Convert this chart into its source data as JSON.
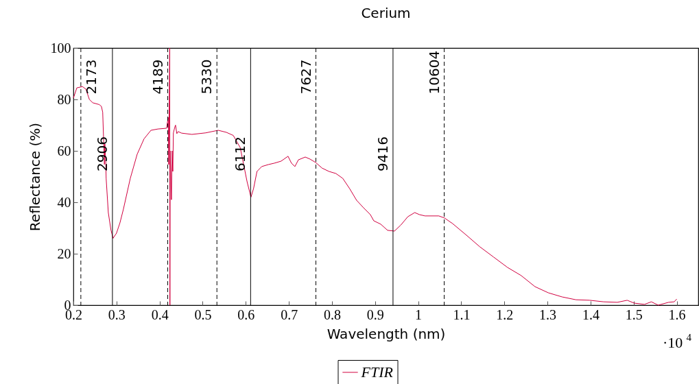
{
  "chart_data": {
    "type": "line",
    "title": "Cerium",
    "xlabel": "Wavelength (nm)",
    "ylabel": "Reflectance (%)",
    "xlim": [
      0.2,
      1.65
    ],
    "ylim": [
      0,
      100
    ],
    "xticks": [
      0.2,
      0.3,
      0.4,
      0.5,
      0.6,
      0.7,
      0.8,
      0.9,
      1,
      1.1,
      1.2,
      1.3,
      1.4,
      1.5,
      1.6
    ],
    "yticks": [
      0,
      20,
      40,
      60,
      80,
      100
    ],
    "legend": "bottom",
    "annotations": [
      "·10$^{4}$",
      {
        "text": "2173",
        "x": 0.2173,
        "y": 70
      },
      {
        "text": "2906",
        "x": 0.2906,
        "y": 40
      },
      {
        "text": "4189",
        "x": 0.4189,
        "y": 70
      },
      {
        "text": "5330",
        "x": 0.533,
        "y": 70
      },
      {
        "text": "6112",
        "x": 0.6112,
        "y": 40
      },
      {
        "text": "7627",
        "x": 0.7627,
        "y": 70
      },
      {
        "text": "9416",
        "x": 0.9416,
        "y": 40
      },
      {
        "text": "10604",
        "x": 1.0604,
        "y": 70
      }
    ],
    "series": [
      {
        "name": "FTIR",
        "color": "#d1003f",
        "x": [
          0.2,
          0.208,
          0.221,
          0.229,
          0.237,
          0.245,
          0.26,
          0.265,
          0.268,
          0.272,
          0.273,
          0.275,
          0.276,
          0.281,
          0.287,
          0.292,
          0.3,
          0.308,
          0.316,
          0.332,
          0.348,
          0.364,
          0.38,
          0.396,
          0.416,
          0.42,
          0.421,
          0.4235,
          0.424,
          0.4245,
          0.4275,
          0.429,
          0.4307,
          0.432,
          0.4354,
          0.437,
          0.44,
          0.443,
          0.451,
          0.475,
          0.507,
          0.536,
          0.555,
          0.571,
          0.587,
          0.595,
          0.603,
          0.612,
          0.618,
          0.626,
          0.637,
          0.653,
          0.666,
          0.682,
          0.698,
          0.706,
          0.714,
          0.722,
          0.738,
          0.749,
          0.762,
          0.777,
          0.793,
          0.809,
          0.825,
          0.841,
          0.857,
          0.873,
          0.889,
          0.897,
          0.913,
          0.929,
          0.945,
          0.96,
          0.976,
          0.992,
          1.003,
          1.016,
          1.048,
          1.061,
          1.08,
          1.112,
          1.143,
          1.175,
          1.207,
          1.239,
          1.271,
          1.302,
          1.334,
          1.366,
          1.398,
          1.43,
          1.462,
          1.485,
          1.501,
          1.525,
          1.541,
          1.557,
          1.581,
          1.594,
          1.6
        ],
        "values": [
          80.5,
          84.5,
          85,
          84,
          80,
          78.7,
          78,
          77.3,
          75,
          54.7,
          62.7,
          56,
          49.3,
          36,
          29.3,
          26,
          28,
          32,
          37.3,
          49.3,
          58.7,
          64.7,
          68,
          68.5,
          68.8,
          73,
          54.7,
          100,
          0,
          60,
          41,
          60,
          52,
          67,
          69.3,
          70,
          66.7,
          67.5,
          66.9,
          66.4,
          67,
          68,
          67.2,
          66,
          61.3,
          54.7,
          48,
          42,
          45.3,
          52,
          53.9,
          54.7,
          55.2,
          56,
          57.9,
          55.2,
          53.9,
          56.5,
          57.6,
          56.8,
          55.5,
          53.3,
          52,
          51.2,
          49.3,
          45.3,
          40.8,
          37.9,
          35.2,
          32.8,
          31.5,
          29.1,
          28.8,
          31.2,
          34.4,
          36,
          35.2,
          34.7,
          34.7,
          33.9,
          31.7,
          27.2,
          22.7,
          18.7,
          14.7,
          11.5,
          7.2,
          4.8,
          3.2,
          2.1,
          1.9,
          1.3,
          1.1,
          1.9,
          0.8,
          0.3,
          1.3,
          0,
          1.1,
          1.3,
          2.4
        ]
      }
    ],
    "ref_lines": [
      {
        "axis": "x",
        "value": 0.2173,
        "line_style": "dashed",
        "color": "#000000"
      },
      {
        "axis": "x",
        "value": 0.2906,
        "line_style": "solid",
        "color": "#000000"
      },
      {
        "axis": "x",
        "value": 0.4189,
        "line_style": "dashed",
        "color": "#000000"
      },
      {
        "axis": "x",
        "value": 0.533,
        "line_style": "dashed",
        "color": "#000000"
      },
      {
        "axis": "x",
        "value": 0.6112,
        "line_style": "solid",
        "color": "#000000"
      },
      {
        "axis": "x",
        "value": 0.7627,
        "line_style": "dashed",
        "color": "#000000"
      },
      {
        "axis": "x",
        "value": 0.9416,
        "line_style": "solid",
        "color": "#000000"
      },
      {
        "axis": "x",
        "value": 1.0604,
        "line_style": "dashed",
        "color": "#000000"
      }
    ]
  }
}
